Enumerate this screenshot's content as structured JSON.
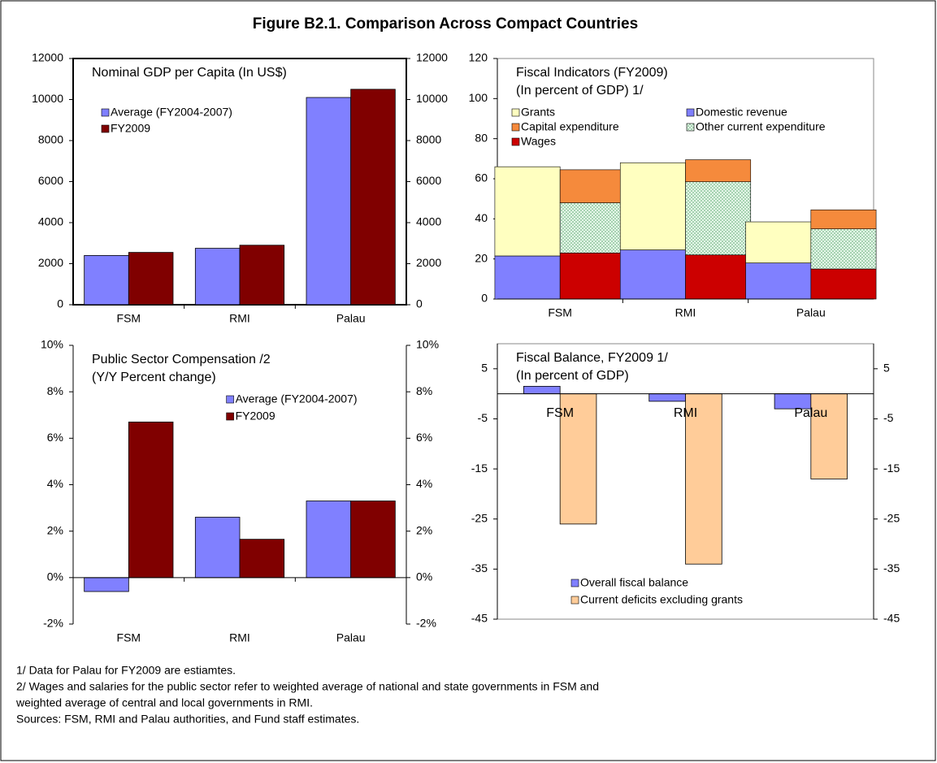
{
  "title": "Figure B2.1. Comparison Across Compact Countries",
  "footnotes": [
    "1/ Data for Palau for FY2009 are estiamtes.",
    "2/ Wages and salaries for the public sector refer to weighted average of national and state governments in FSM and",
    "weighted average of central and local governments in RMI.",
    "Sources: FSM, RMI and Palau authorities, and Fund staff estimates."
  ],
  "chart_data": [
    {
      "type": "bar",
      "title": "Nominal GDP per Capita (In US$)",
      "categories": [
        "FSM",
        "RMI",
        "Palau"
      ],
      "series": [
        {
          "name": "Average (FY2004-2007)",
          "color": "#8080ff",
          "values": [
            2400,
            2750,
            10100
          ]
        },
        {
          "name": "FY2009",
          "color": "#800000",
          "values": [
            2550,
            2900,
            10500
          ]
        }
      ],
      "ylim": [
        0,
        12000
      ],
      "yticks": [
        0,
        2000,
        4000,
        6000,
        8000,
        10000,
        12000
      ],
      "y2lim": [
        0,
        12000
      ],
      "y2ticks": [
        0,
        2000,
        4000,
        6000,
        8000,
        10000,
        12000
      ],
      "legend": "upper left"
    },
    {
      "type": "stacked_bar",
      "title": "Fiscal Indicators (FY2009)",
      "subtitle": "(In percent of GDP) 1/",
      "categories": [
        "FSM",
        "RMI",
        "Palau"
      ],
      "series": [
        {
          "name": "Grants",
          "color": "#ffffc0",
          "stack": 0,
          "values": [
            44.5,
            43.5,
            20.5
          ]
        },
        {
          "name": "Domestic revenue",
          "color": "#8080ff",
          "stack": 0,
          "values": [
            21.5,
            24.5,
            18
          ]
        },
        {
          "name": "Capital expenditure",
          "color": "#f58a3c",
          "stack": 1,
          "values": [
            16.5,
            11,
            9.5
          ]
        },
        {
          "name": "Other current expenditure",
          "color": "#c8ecd0",
          "pattern": "dots",
          "stack": 1,
          "values": [
            25,
            36.5,
            20
          ]
        },
        {
          "name": "Wages",
          "color": "#cc0000",
          "stack": 1,
          "values": [
            23,
            22,
            15
          ]
        }
      ],
      "ylim": [
        0,
        120
      ],
      "yticks": [
        0,
        20,
        40,
        60,
        80,
        100,
        120
      ],
      "legend": "upper left"
    },
    {
      "type": "bar",
      "title": "Public Sector Compensation /2",
      "subtitle": "(Y/Y Percent change)",
      "categories": [
        "FSM",
        "RMI",
        "Palau"
      ],
      "series": [
        {
          "name": "Average (FY2004-2007)",
          "color": "#8080ff",
          "values": [
            -0.6,
            2.6,
            3.3
          ]
        },
        {
          "name": "FY2009",
          "color": "#800000",
          "values": [
            6.7,
            1.65,
            3.3
          ]
        }
      ],
      "ylim": [
        -2,
        10
      ],
      "yticks": [
        {
          "value": -2,
          "label": "-2%"
        },
        {
          "value": 0,
          "label": "0%"
        },
        {
          "value": 2,
          "label": "2%"
        },
        {
          "value": 4,
          "label": "4%"
        },
        {
          "value": 6,
          "label": "6%"
        },
        {
          "value": 8,
          "label": "8%"
        },
        {
          "value": 10,
          "label": "10%"
        }
      ],
      "y2lim": [
        -2,
        10
      ],
      "y2ticks": [
        {
          "value": -2,
          "label": "-2%"
        },
        {
          "value": 0,
          "label": "0%"
        },
        {
          "value": 2,
          "label": "2%"
        },
        {
          "value": 4,
          "label": "4%"
        },
        {
          "value": 6,
          "label": "6%"
        },
        {
          "value": 8,
          "label": "8%"
        },
        {
          "value": 10,
          "label": "10%"
        }
      ],
      "legend": "upper center"
    },
    {
      "type": "bar",
      "title": "Fiscal Balance, FY2009 1/",
      "subtitle": "(In percent of GDP)",
      "categories": [
        "FSM",
        "RMI",
        "Palau"
      ],
      "series": [
        {
          "name": "Overall fiscal balance",
          "color": "#8080ff",
          "values": [
            1.5,
            -1.5,
            -3
          ]
        },
        {
          "name": "Current deficits excluding grants",
          "color": "#ffcc99",
          "values": [
            -26,
            -34,
            -17
          ]
        }
      ],
      "ylim": [
        -45,
        10
      ],
      "yticks": [
        -45,
        -35,
        -25,
        -15,
        -5,
        5
      ],
      "y2lim": [
        -45,
        10
      ],
      "y2ticks": [
        -45,
        -35,
        -25,
        -15,
        -5,
        5
      ],
      "legend": "lower left"
    }
  ]
}
